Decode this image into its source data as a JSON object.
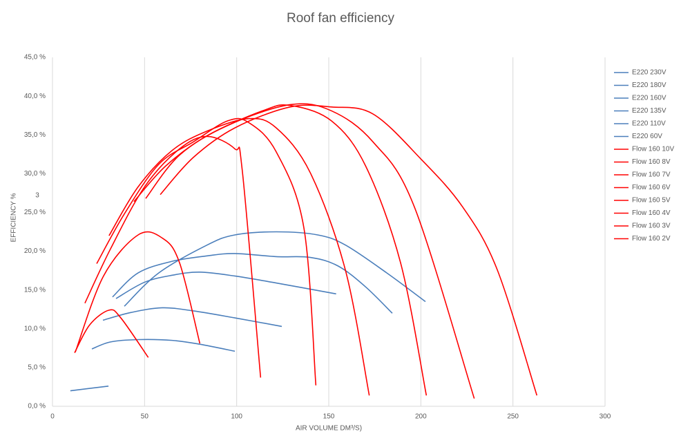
{
  "chart_data": {
    "type": "line",
    "title": "Roof fan efficiency",
    "x_label": "AIR VOLUME DM³/S)",
    "y_label": "EFFICIENCY %",
    "annotation": "3",
    "xlim": [
      0,
      300
    ],
    "xticks": [
      0,
      50,
      100,
      150,
      200,
      250,
      300
    ],
    "ylim": [
      0,
      45
    ],
    "yticks": [
      {
        "value": 0,
        "label": "0,0 %"
      },
      {
        "value": 5,
        "label": "5,0 %"
      },
      {
        "value": 10,
        "label": "10,0 %"
      },
      {
        "value": 15,
        "label": "15,0 %"
      },
      {
        "value": 20,
        "label": "20,0 %"
      },
      {
        "value": 25,
        "label": "25,0 %"
      },
      {
        "value": 30,
        "label": "30,0 %"
      },
      {
        "value": 35,
        "label": "35,0 %"
      },
      {
        "value": 40,
        "label": "40,0 %"
      },
      {
        "value": 45,
        "label": "45,0 %"
      }
    ],
    "grid": "x",
    "legend": "right",
    "series": [
      {
        "name": "E220 230V",
        "color": "#4a7ebb",
        "x": [
          39,
          57.7,
          84,
          99,
          121.5,
          144,
          159,
          181.5,
          202.5
        ],
        "values": [
          12.9,
          17.2,
          20.8,
          22.1,
          22.5,
          22.1,
          20.8,
          17.2,
          13.5
        ]
      },
      {
        "name": "E220 180V",
        "color": "#4a7ebb",
        "x": [
          32.6,
          46.5,
          65,
          84,
          99,
          121.5,
          140,
          155,
          170,
          184.5
        ],
        "values": [
          14.1,
          17.2,
          18.7,
          19.4,
          19.7,
          19.3,
          19.2,
          18.1,
          15.4,
          12.0
        ]
      },
      {
        "name": "E220 160V",
        "color": "#4a7ebb",
        "x": [
          34.5,
          50,
          65,
          80,
          99,
          121.5,
          154
        ],
        "values": [
          13.9,
          16.0,
          16.9,
          17.3,
          16.8,
          15.9,
          14.5
        ]
      },
      {
        "name": "E220 135V",
        "color": "#4a7ebb",
        "x": [
          27.4,
          42.7,
          59.6,
          76.5,
          99,
          124.5
        ],
        "values": [
          11.1,
          12.1,
          12.7,
          12.3,
          11.4,
          10.3
        ]
      },
      {
        "name": "E220 110V",
        "color": "#4a7ebb",
        "x": [
          21.4,
          31.5,
          46.5,
          65,
          80,
          99
        ],
        "values": [
          7.4,
          8.3,
          8.6,
          8.5,
          8.0,
          7.1
        ]
      },
      {
        "name": "E220 60V",
        "color": "#4a7ebb",
        "x": [
          9.7,
          30.4
        ],
        "values": [
          2.0,
          2.6
        ]
      },
      {
        "name": "Flow 160 10V",
        "color": "#ff0000",
        "x": [
          58.5,
          76.5,
          99,
          129,
          151.5,
          174,
          200,
          222.7,
          241.5,
          263
        ],
        "values": [
          27.3,
          32.1,
          35.9,
          38.6,
          38.6,
          37.7,
          31.9,
          25.7,
          17.6,
          1.4
        ]
      },
      {
        "name": "Flow 160 8V",
        "color": "#ff0000",
        "x": [
          50.6,
          69,
          95,
          129,
          151.5,
          174,
          196.5,
          229
        ],
        "values": [
          26.8,
          32.4,
          36.2,
          38.9,
          38.1,
          34.1,
          25.7,
          1.0
        ]
      },
      {
        "name": "Flow 160 7V",
        "color": "#ff0000",
        "x": [
          44.2,
          61.5,
          84,
          114,
          129,
          151.5,
          170,
          189,
          203
        ],
        "values": [
          26.4,
          31.0,
          34.9,
          38.1,
          38.8,
          36.8,
          31.0,
          18.5,
          1.4
        ]
      },
      {
        "name": "Flow 160 6V",
        "color": "#ff0000",
        "x": [
          30.7,
          46.5,
          65,
          84,
          106.5,
          121.5,
          140,
          159,
          172
        ],
        "values": [
          22.0,
          28.3,
          33.0,
          35.5,
          37.1,
          35.9,
          30.1,
          17.6,
          1.4
        ]
      },
      {
        "name": "Flow 160 5V",
        "color": "#ff0000",
        "x": [
          24,
          39,
          57.7,
          76.5,
          95,
          106.5,
          121.5,
          136.5,
          143
        ],
        "values": [
          18.4,
          24.8,
          31.2,
          34.1,
          36.8,
          36.6,
          32.8,
          23.0,
          2.7
        ]
      },
      {
        "name": "Flow 160 4V",
        "color": "#ff0000",
        "x": [
          17.6,
          31.5,
          50,
          69,
          84,
          99,
          103,
          113
        ],
        "values": [
          13.3,
          20.3,
          28.3,
          33.2,
          34.8,
          33.2,
          30.5,
          3.7
        ]
      },
      {
        "name": "Flow 160 3V",
        "color": "#ff0000",
        "x": [
          12.4,
          27.7,
          46.5,
          59.6,
          69,
          80
        ],
        "values": [
          7.0,
          16.8,
          22.1,
          21.7,
          18.5,
          8.1
        ]
      },
      {
        "name": "Flow 160 2V",
        "color": "#ff0000",
        "x": [
          12,
          20.2,
          30.7,
          37.1,
          52
        ],
        "values": [
          6.9,
          10.5,
          12.4,
          11.4,
          6.3
        ]
      }
    ]
  }
}
